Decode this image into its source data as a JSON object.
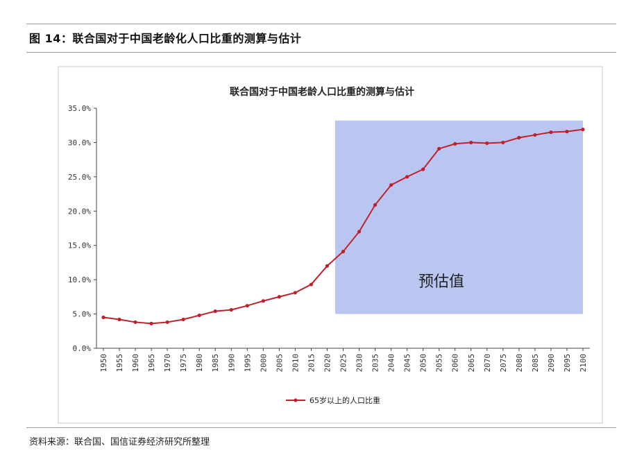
{
  "figure": {
    "title": "图 14：联合国对于中国老龄化人口比重的测算与估计",
    "source": "资料来源：联合国、国信证券经济研究所整理"
  },
  "chart_data": {
    "type": "line",
    "title": "联合国对于中国老龄人口比重的测算与估计",
    "xlabel": "",
    "ylabel": "",
    "ylim": [
      0,
      35
    ],
    "y_ticks": [
      "0.0%",
      "5.0%",
      "10.0%",
      "15.0%",
      "20.0%",
      "25.0%",
      "30.0%",
      "35.0%"
    ],
    "x": [
      1950,
      1955,
      1960,
      1965,
      1970,
      1975,
      1980,
      1985,
      1990,
      1995,
      2000,
      2005,
      2010,
      2015,
      2020,
      2025,
      2030,
      2035,
      2040,
      2045,
      2050,
      2055,
      2060,
      2065,
      2070,
      2075,
      2080,
      2085,
      2090,
      2095,
      2100
    ],
    "series": [
      {
        "name": "65岁以上的人口比重",
        "color": "#c0202a",
        "values": [
          4.5,
          4.2,
          3.8,
          3.6,
          3.8,
          4.2,
          4.8,
          5.4,
          5.6,
          6.2,
          6.9,
          7.5,
          8.1,
          9.3,
          12.0,
          14.1,
          17.0,
          20.9,
          23.8,
          25.0,
          26.1,
          29.1,
          29.8,
          30.0,
          29.9,
          30.0,
          30.7,
          31.1,
          31.5,
          31.6,
          31.9
        ]
      }
    ],
    "shaded_region": {
      "x_from": 2022.5,
      "x_to": 2100,
      "y_from": 5.0,
      "y_to": 33.2,
      "color": "#b9c6f2",
      "label": "预估值"
    },
    "legend": {
      "position": "bottom-center"
    },
    "grid": false
  }
}
